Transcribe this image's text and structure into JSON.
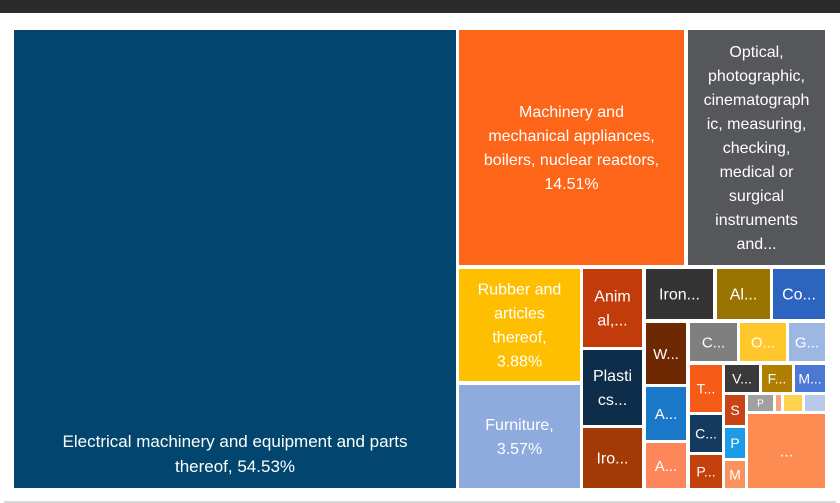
{
  "chart_data": {
    "type": "treemap",
    "tiles": [
      {
        "id": "electrical",
        "text": [
          "Electrical machinery and equipment and parts",
          "thereof, 54.53%"
        ],
        "value": 54.53,
        "color": "#02466f",
        "valign": "bottom"
      },
      {
        "id": "machinery",
        "text": [
          "Machinery and",
          "mechanical appliances,",
          "boilers, nuclear reactors,",
          "14.51%"
        ],
        "value": 14.51,
        "color": "#fd6619"
      },
      {
        "id": "optical",
        "text": [
          "Optical,",
          "photographic,",
          "cinematograph",
          "ic, measuring,",
          "checking,",
          "medical or",
          "surgical",
          "instruments",
          "and..."
        ],
        "color": "#56575a"
      },
      {
        "id": "rubber",
        "text": [
          "Rubber and",
          "articles",
          "thereof,",
          "3.88%"
        ],
        "value": 3.88,
        "color": "#fdbf00"
      },
      {
        "id": "animal",
        "text": [
          "Anim",
          "al,..."
        ],
        "color": "#c13b0b"
      },
      {
        "id": "iron1",
        "text": [
          "Iron..."
        ],
        "color": "#333333"
      },
      {
        "id": "al",
        "text": [
          "Al..."
        ],
        "color": "#9a7400"
      },
      {
        "id": "co",
        "text": [
          "Co..."
        ],
        "color": "#2d64c0"
      },
      {
        "id": "furniture",
        "text": [
          "Furniture,",
          "3.57%"
        ],
        "value": 3.57,
        "color": "#8faadc"
      },
      {
        "id": "plastics",
        "text": [
          "Plasti",
          "cs..."
        ],
        "color": "#0e2d4b"
      },
      {
        "id": "iron2",
        "text": [
          "Iro..."
        ],
        "color": "#a33a05"
      },
      {
        "id": "w",
        "text": [
          "W..."
        ],
        "color": "#6f2902"
      },
      {
        "id": "a1",
        "text": [
          "A..."
        ],
        "color": "#1a78c8"
      },
      {
        "id": "a2",
        "text": [
          "A..."
        ],
        "color": "#fd875a"
      },
      {
        "id": "c1",
        "text": [
          "C..."
        ],
        "color": "#7f7f7f"
      },
      {
        "id": "o",
        "text": [
          "O..."
        ],
        "color": "#ffc72c"
      },
      {
        "id": "g",
        "text": [
          "G..."
        ],
        "color": "#9db7e3"
      },
      {
        "id": "t",
        "text": [
          "T..."
        ],
        "color": "#f55a17"
      },
      {
        "id": "c2",
        "text": [
          "C..."
        ],
        "color": "#153a60"
      },
      {
        "id": "p1",
        "text": [
          "P..."
        ],
        "color": "#c2410c"
      },
      {
        "id": "v",
        "text": [
          "V..."
        ],
        "color": "#3a3a3a"
      },
      {
        "id": "f",
        "text": [
          "F..."
        ],
        "color": "#b07f00"
      },
      {
        "id": "m1",
        "text": [
          "M..."
        ],
        "color": "#4a78d4"
      },
      {
        "id": "s",
        "text": [
          "S"
        ],
        "color": "#c74416"
      },
      {
        "id": "p2",
        "text": [
          "P"
        ],
        "color": "#1c9be8"
      },
      {
        "id": "m2",
        "text": [
          "M"
        ],
        "color": "#f9925f"
      },
      {
        "id": "tiny1",
        "text": [
          "P"
        ],
        "color": "#a0a0a0"
      },
      {
        "id": "tiny2",
        "text": [
          ""
        ],
        "color": "#f5a57c"
      },
      {
        "id": "tiny3",
        "text": [
          ""
        ],
        "color": "#ffd24d"
      },
      {
        "id": "tiny4",
        "text": [
          ""
        ],
        "color": "#b8c9ea"
      },
      {
        "id": "rest",
        "text": [
          "..."
        ],
        "color": "#fd8c52"
      }
    ]
  }
}
